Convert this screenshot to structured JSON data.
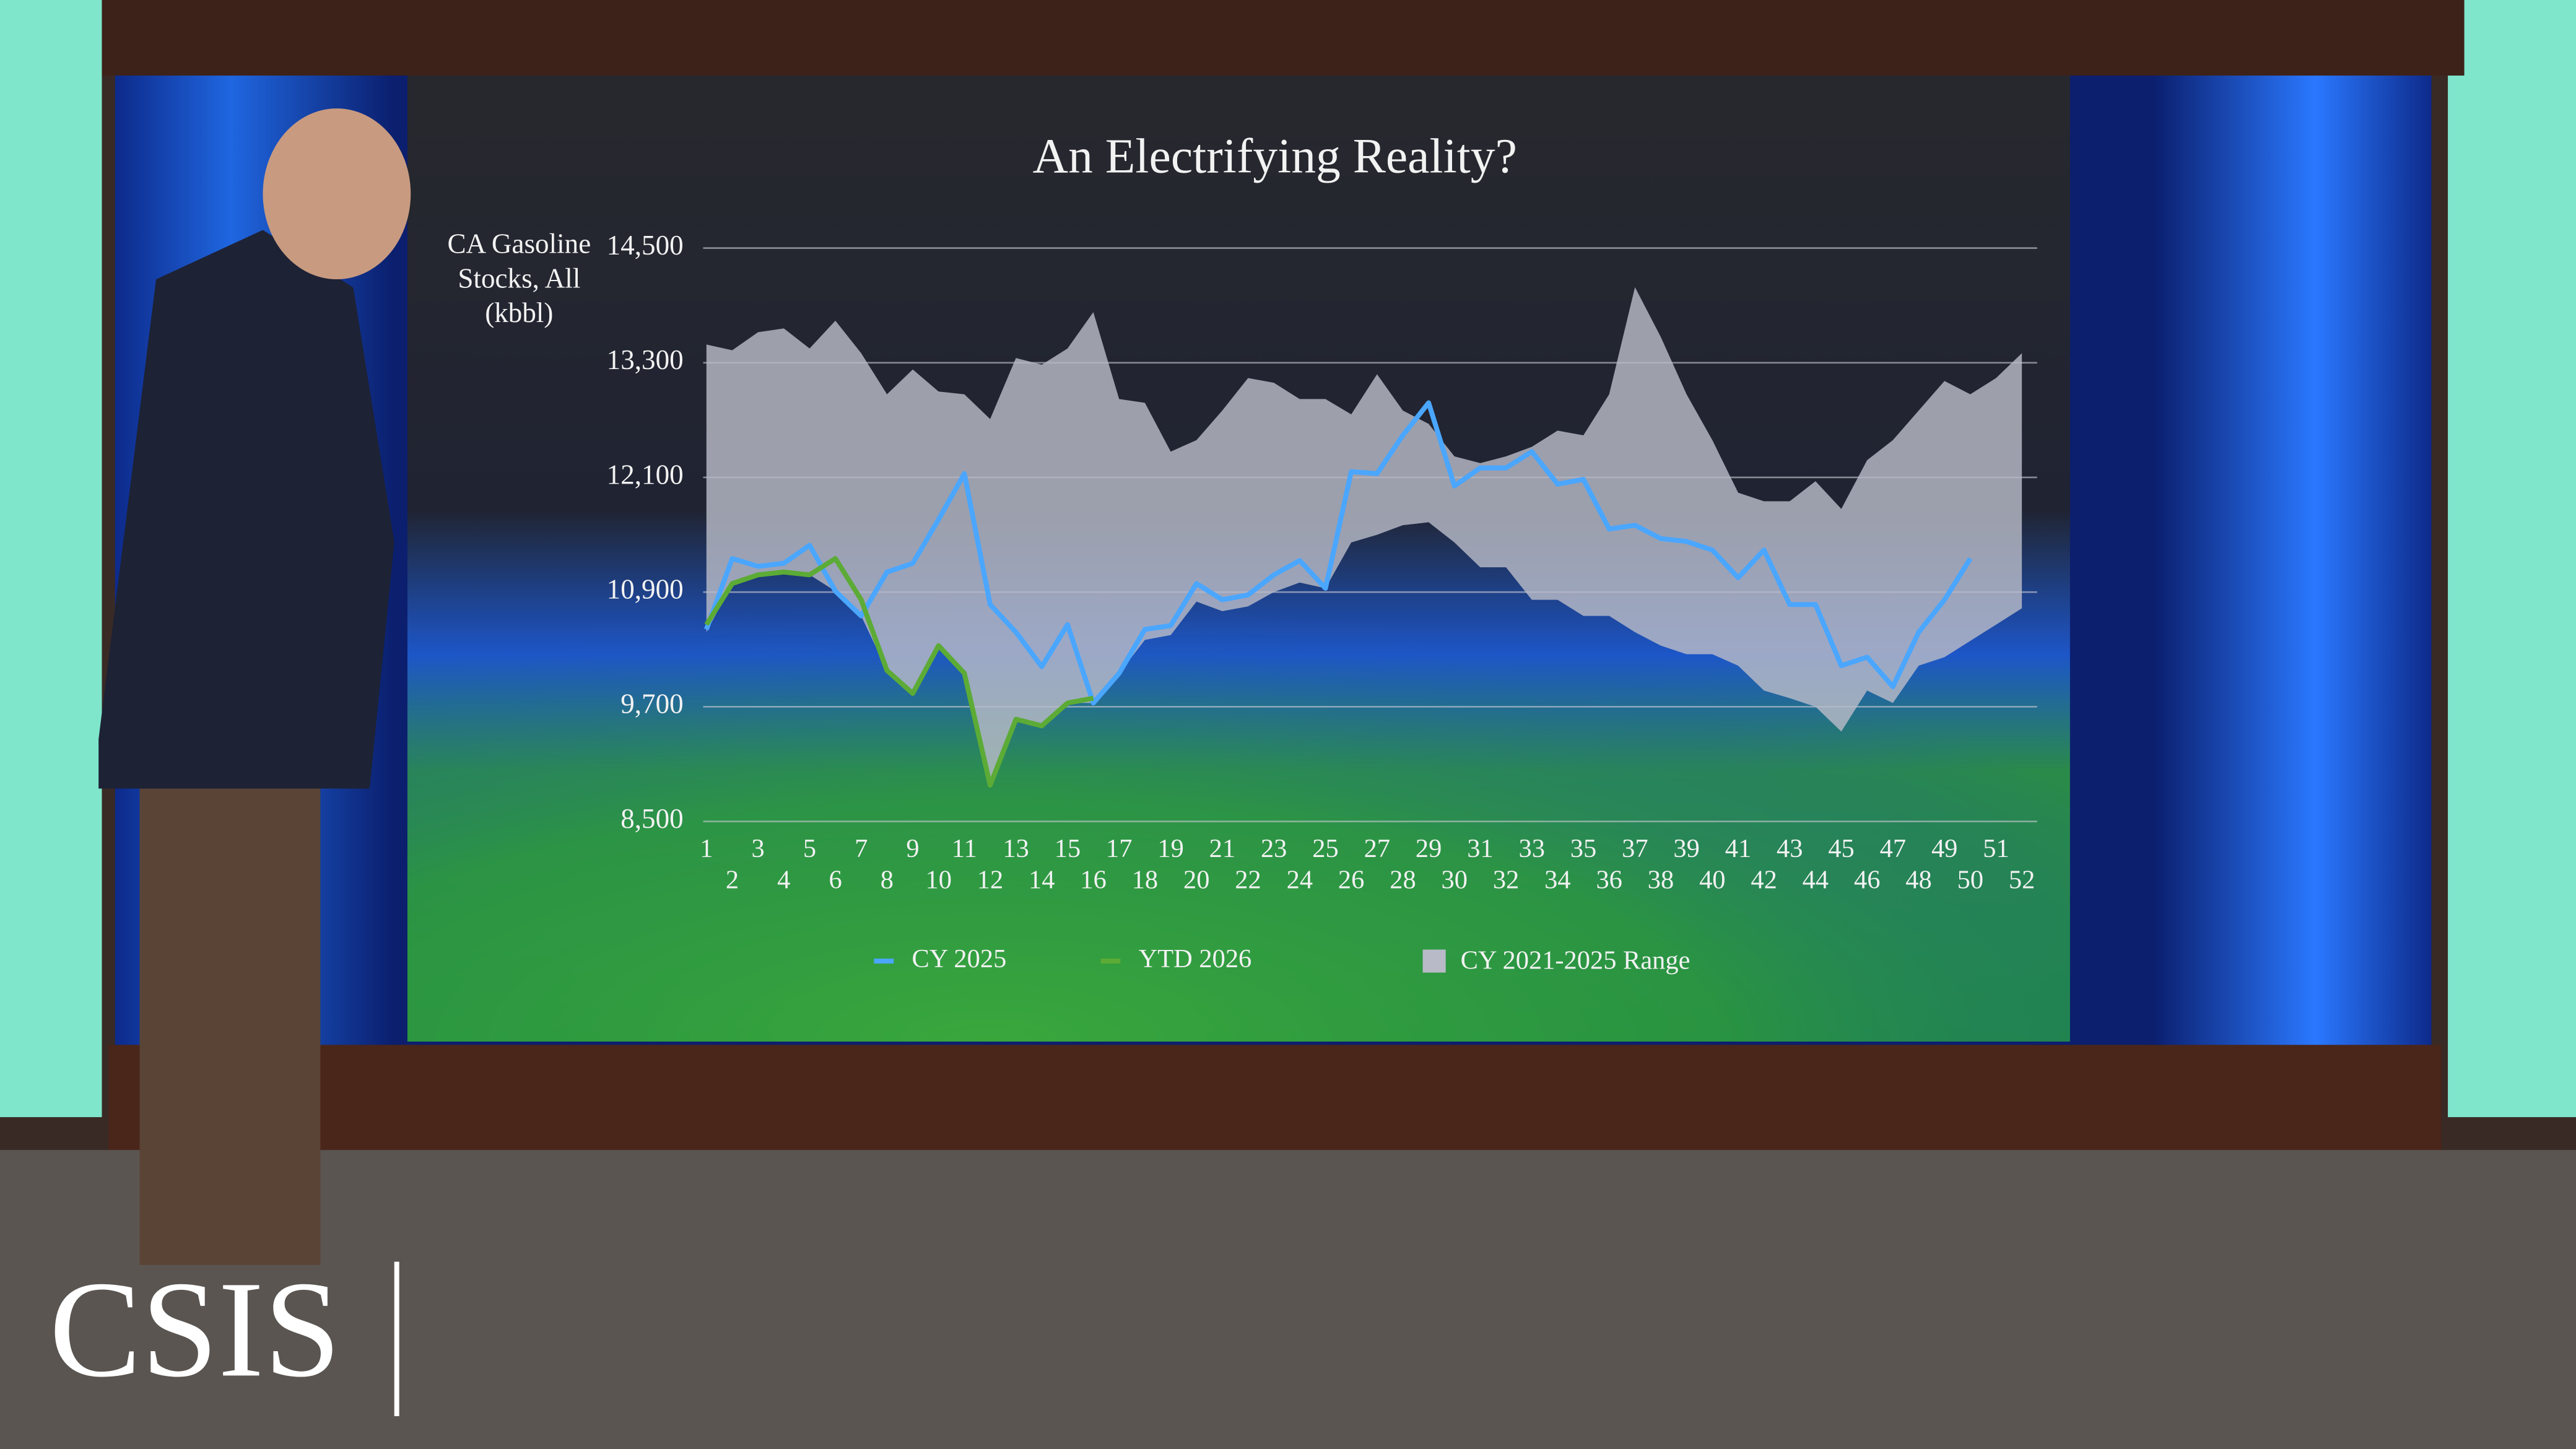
{
  "chart_data": {
    "type": "line",
    "title": "An Electrifying Reality?",
    "y_label": "CA Gasoline Stocks, All (kbbl)",
    "categories": [
      1,
      2,
      3,
      4,
      5,
      6,
      7,
      8,
      9,
      10,
      11,
      12,
      13,
      14,
      15,
      16,
      17,
      18,
      19,
      20,
      21,
      22,
      23,
      24,
      25,
      26,
      27,
      28,
      29,
      30,
      31,
      32,
      33,
      34,
      35,
      36,
      37,
      38,
      39,
      40,
      41,
      42,
      43,
      44,
      45,
      46,
      47,
      48,
      49,
      50,
      51,
      52
    ],
    "ylim": [
      8500,
      14500
    ],
    "yticks": [
      {
        "value": 8500,
        "label": "8,500"
      },
      {
        "value": 9700,
        "label": "9,700"
      },
      {
        "value": 10900,
        "label": "10,900"
      },
      {
        "value": 12100,
        "label": "12,100"
      },
      {
        "value": 13300,
        "label": "13,300"
      },
      {
        "value": 14500,
        "label": "14,500"
      }
    ],
    "grid": true,
    "legend": "bottom",
    "range": {
      "name": "CY 2021-2025 Range",
      "color": "#b8bbc7",
      "upper": [
        13490,
        13430,
        13620,
        13660,
        13450,
        13740,
        13400,
        12970,
        13230,
        13000,
        12970,
        12710,
        13350,
        13280,
        13450,
        13830,
        12920,
        12880,
        12370,
        12490,
        12800,
        13140,
        13090,
        12920,
        12920,
        12760,
        13180,
        12800,
        12660,
        12320,
        12250,
        12320,
        12420,
        12590,
        12540,
        12970,
        14090,
        13570,
        12970,
        12490,
        11940,
        11850,
        11850,
        12060,
        11770,
        12280,
        12490,
        12800,
        13110,
        12970,
        13140,
        13400
      ],
      "lower": [
        10480,
        10990,
        11080,
        11110,
        11080,
        10910,
        10650,
        10080,
        9840,
        10340,
        10050,
        8880,
        9570,
        9500,
        9740,
        9740,
        10050,
        10400,
        10450,
        10800,
        10700,
        10750,
        10900,
        11000,
        10940,
        11420,
        11500,
        11600,
        11630,
        11420,
        11160,
        11160,
        10820,
        10820,
        10650,
        10650,
        10480,
        10340,
        10250,
        10250,
        10130,
        9870,
        9790,
        9700,
        9440,
        9870,
        9740,
        10130,
        10220,
        10390,
        10560,
        10730
      ]
    },
    "series": [
      {
        "name": "CY 2025",
        "color": "#4aa6ff",
        "values": [
          10510,
          11250,
          11170,
          11200,
          11390,
          10910,
          10650,
          11110,
          11200,
          11660,
          12140,
          10770,
          10480,
          10120,
          10560,
          9740,
          10050,
          10510,
          10550,
          10990,
          10820,
          10870,
          11080,
          11230,
          10940,
          12160,
          12140,
          12540,
          12880,
          12010,
          12200,
          12200,
          12370,
          12030,
          12080,
          11560,
          11600,
          11460,
          11430,
          11340,
          11050,
          11340,
          10770,
          10770,
          10130,
          10220,
          9910,
          10480,
          10820,
          11250,
          null,
          null
        ]
      },
      {
        "name": "YTD 2026",
        "color": "#5bab36",
        "values": [
          10560,
          10990,
          11080,
          11110,
          11080,
          11250,
          10820,
          10080,
          9840,
          10340,
          10050,
          8880,
          9570,
          9500,
          9740,
          9790,
          null,
          null,
          null,
          null,
          null,
          null,
          null,
          null,
          null,
          null,
          null,
          null,
          null,
          null,
          null,
          null,
          null,
          null,
          null,
          null,
          null,
          null,
          null,
          null,
          null,
          null,
          null,
          null,
          null,
          null,
          null,
          null,
          null,
          null,
          null,
          null
        ]
      }
    ]
  },
  "logo": "CSIS"
}
